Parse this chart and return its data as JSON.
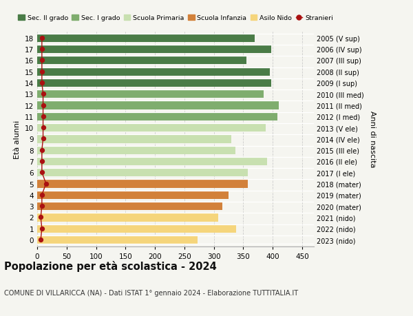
{
  "ages": [
    18,
    17,
    16,
    15,
    14,
    13,
    12,
    11,
    10,
    9,
    8,
    7,
    6,
    5,
    4,
    3,
    2,
    1,
    0
  ],
  "bar_values": [
    370,
    398,
    355,
    395,
    398,
    385,
    410,
    408,
    388,
    330,
    337,
    390,
    358,
    358,
    325,
    315,
    308,
    338,
    272
  ],
  "stranieri_values": [
    8,
    8,
    8,
    8,
    8,
    10,
    10,
    10,
    10,
    10,
    8,
    8,
    8,
    15,
    8,
    8,
    6,
    8,
    6
  ],
  "right_labels": [
    "2005 (V sup)",
    "2006 (IV sup)",
    "2007 (III sup)",
    "2008 (II sup)",
    "2009 (I sup)",
    "2010 (III med)",
    "2011 (II med)",
    "2012 (I med)",
    "2013 (V ele)",
    "2014 (IV ele)",
    "2015 (III ele)",
    "2016 (II ele)",
    "2017 (I ele)",
    "2018 (mater)",
    "2019 (mater)",
    "2020 (mater)",
    "2021 (nido)",
    "2022 (nido)",
    "2023 (nido)"
  ],
  "bar_colors": [
    "#4a7c47",
    "#4a7c47",
    "#4a7c47",
    "#4a7c47",
    "#4a7c47",
    "#7fad6e",
    "#7fad6e",
    "#7fad6e",
    "#c8e0b0",
    "#c8e0b0",
    "#c8e0b0",
    "#c8e0b0",
    "#c8e0b0",
    "#d2813a",
    "#d2813a",
    "#d2813a",
    "#f5d57c",
    "#f5d57c",
    "#f5d57c"
  ],
  "legend_colors": [
    "#4a7c47",
    "#7fad6e",
    "#c8e0b0",
    "#d2813a",
    "#f5d57c",
    "#aa1111"
  ],
  "legend_labels": [
    "Sec. II grado",
    "Sec. I grado",
    "Scuola Primaria",
    "Scuola Infanzia",
    "Asilo Nido",
    "Stranieri"
  ],
  "stranieri_color": "#aa1111",
  "title": "Popolazione per età scolastica - 2024",
  "subtitle": "COMUNE DI VILLARICCA (NA) - Dati ISTAT 1° gennaio 2024 - Elaborazione TUTTITALIA.IT",
  "ylabel": "Età alunni",
  "right_ylabel": "Anni di nascita",
  "xlim": [
    0,
    470
  ],
  "xticks": [
    0,
    50,
    100,
    150,
    200,
    250,
    300,
    350,
    400,
    450
  ],
  "bg_color": "#f5f5f0",
  "bar_height": 0.75,
  "ylim": [
    -0.6,
    18.6
  ]
}
